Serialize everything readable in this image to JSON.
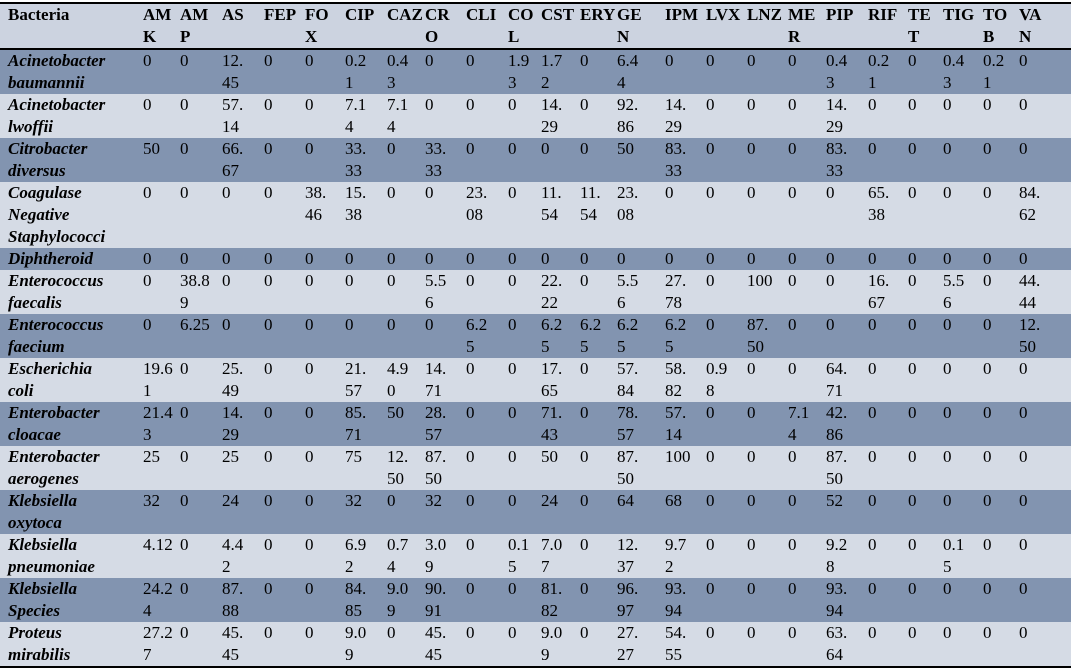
{
  "colors": {
    "header_bg": "#ccd3e0",
    "light_row": "#d5dbe5",
    "dark_row": "#8294b0",
    "border": "#000000"
  },
  "table": {
    "columns": [
      {
        "key": "bacteria",
        "label": "Bacteria",
        "lines": [
          "Bacteria"
        ]
      },
      {
        "key": "AMK",
        "label": "AMK",
        "lines": [
          "AM",
          "K"
        ]
      },
      {
        "key": "AMP",
        "label": "AMP",
        "lines": [
          "AM",
          "P"
        ]
      },
      {
        "key": "AS",
        "label": "AS",
        "lines": [
          "AS"
        ]
      },
      {
        "key": "FEP",
        "label": "FEP",
        "lines": [
          "FEP"
        ]
      },
      {
        "key": "FOX",
        "label": "FOX",
        "lines": [
          "FO",
          "X"
        ]
      },
      {
        "key": "CIP",
        "label": "CIP",
        "lines": [
          "CIP"
        ]
      },
      {
        "key": "CAZ",
        "label": "CAZ",
        "lines": [
          "CAZ"
        ]
      },
      {
        "key": "CRO",
        "label": "CRO",
        "lines": [
          "CR",
          "O"
        ]
      },
      {
        "key": "CLI",
        "label": "CLI",
        "lines": [
          "CLI"
        ]
      },
      {
        "key": "COL",
        "label": "COL",
        "lines": [
          "CO",
          "L"
        ]
      },
      {
        "key": "CST",
        "label": "CST",
        "lines": [
          "CST"
        ]
      },
      {
        "key": "ERY",
        "label": "ERY",
        "lines": [
          "ERY"
        ]
      },
      {
        "key": "GEN",
        "label": "GEN",
        "lines": [
          "GE",
          "N"
        ]
      },
      {
        "key": "IPM",
        "label": "IPM",
        "lines": [
          "IPM"
        ]
      },
      {
        "key": "LVX",
        "label": "LVX",
        "lines": [
          "LVX"
        ]
      },
      {
        "key": "LNZ",
        "label": "LNZ",
        "lines": [
          "LNZ"
        ]
      },
      {
        "key": "MER",
        "label": "MER",
        "lines": [
          "ME",
          "R"
        ]
      },
      {
        "key": "PIP",
        "label": "PIP",
        "lines": [
          "PIP"
        ]
      },
      {
        "key": "RIF",
        "label": "RIF",
        "lines": [
          "RIF"
        ]
      },
      {
        "key": "TET",
        "label": "TET",
        "lines": [
          "TE",
          "T"
        ]
      },
      {
        "key": "TIG",
        "label": "TIG",
        "lines": [
          "TIG"
        ]
      },
      {
        "key": "TOB",
        "label": "TOB",
        "lines": [
          "TO",
          "B"
        ]
      },
      {
        "key": "VAN",
        "label": "VAN",
        "lines": [
          "VA",
          "N"
        ]
      }
    ],
    "rows": [
      {
        "bacteria": "Acinetobacter baumannii",
        "values": [
          "0",
          "0",
          "12.45",
          "0",
          "0",
          "0.21",
          "0.43",
          "0",
          "0",
          "1.93",
          "1.72",
          "0",
          "6.44",
          "0",
          "0",
          "0",
          "0",
          "0.43",
          "0.21",
          "0",
          "0.43",
          "0.21",
          "0"
        ]
      },
      {
        "bacteria": "Acinetobacter lwoffii",
        "values": [
          "0",
          "0",
          "57.14",
          "0",
          "0",
          "7.14",
          "7.14",
          "0",
          "0",
          "0",
          "14.29",
          "0",
          "92.86",
          "14.29",
          "0",
          "0",
          "0",
          "14.29",
          "0",
          "0",
          "0",
          "0",
          "0"
        ]
      },
      {
        "bacteria": "Citrobacter diversus",
        "values": [
          "50",
          "0",
          "66.67",
          "0",
          "0",
          "33.33",
          "0",
          "33.33",
          "0",
          "0",
          "0",
          "0",
          "50",
          "83.33",
          "0",
          "0",
          "0",
          "83.33",
          "0",
          "0",
          "0",
          "0",
          "0"
        ]
      },
      {
        "bacteria": "Coagulase Negative Staphylococci",
        "values": [
          "0",
          "0",
          "0",
          "0",
          "38.46",
          "15.38",
          "0",
          "0",
          "23.08",
          "0",
          "11.54",
          "11.54",
          "23.08",
          "0",
          "0",
          "0",
          "0",
          "0",
          "65.38",
          "0",
          "0",
          "0",
          "84.62"
        ]
      },
      {
        "bacteria": "Diphtheroid",
        "values": [
          "0",
          "0",
          "0",
          "0",
          "0",
          "0",
          "0",
          "0",
          "0",
          "0",
          "0",
          "0",
          "0",
          "0",
          "0",
          "0",
          "0",
          "0",
          "0",
          "0",
          "0",
          "0",
          "0"
        ]
      },
      {
        "bacteria": "Enterococcus faecalis",
        "values": [
          "0",
          "38.89",
          "0",
          "0",
          "0",
          "0",
          "0",
          "5.56",
          "0",
          "0",
          "22.22",
          "0",
          "5.56",
          "27.78",
          "0",
          "100",
          "0",
          "0",
          "16.67",
          "0",
          "5.56",
          "0",
          "44.44"
        ]
      },
      {
        "bacteria": "Enterococcus faecium",
        "values": [
          "0",
          "6.25",
          "0",
          "0",
          "0",
          "0",
          "0",
          "0",
          "6.25",
          "0",
          "6.25",
          "6.25",
          "6.25",
          "6.25",
          "0",
          "87.50",
          "0",
          "0",
          "0",
          "0",
          "0",
          "0",
          "12.50"
        ]
      },
      {
        "bacteria": "Escherichia coli",
        "values": [
          "19.61",
          "0",
          "25.49",
          "0",
          "0",
          "21.57",
          "4.90",
          "14.71",
          "0",
          "0",
          "17.65",
          "0",
          "57.84",
          "58.82",
          "0.98",
          "0",
          "0",
          "64.71",
          "0",
          "0",
          "0",
          "0",
          "0"
        ]
      },
      {
        "bacteria": "Enterobacter cloacae",
        "values": [
          "21.43",
          "0",
          "14.29",
          "0",
          "0",
          "85.71",
          "50",
          "28.57",
          "0",
          "0",
          "71.43",
          "0",
          "78.57",
          "57.14",
          "0",
          "0",
          "7.14",
          "42.86",
          "0",
          "0",
          "0",
          "0",
          "0"
        ]
      },
      {
        "bacteria": "Enterobacter aerogenes",
        "values": [
          "25",
          "0",
          "25",
          "0",
          "0",
          "75",
          "12.50",
          "87.50",
          "0",
          "0",
          "50",
          "0",
          "87.50",
          "100",
          "0",
          "0",
          "0",
          "87.50",
          "0",
          "0",
          "0",
          "0",
          "0"
        ]
      },
      {
        "bacteria": "Klebsiella oxytoca",
        "values": [
          "32",
          "0",
          "24",
          "0",
          "0",
          "32",
          "0",
          "32",
          "0",
          "0",
          "24",
          "0",
          "64",
          "68",
          "0",
          "0",
          "0",
          "52",
          "0",
          "0",
          "0",
          "0",
          "0"
        ]
      },
      {
        "bacteria": "Klebsiella pneumoniae",
        "values": [
          "4.12",
          "0",
          "4.42",
          "0",
          "0",
          "6.92",
          "0.74",
          "3.09",
          "0",
          "0.15",
          "7.07",
          "0",
          "12.37",
          "9.72",
          "0",
          "0",
          "0",
          "9.28",
          "0",
          "0",
          "0.15",
          "0",
          "0"
        ]
      },
      {
        "bacteria": "Klebsiella Species",
        "values": [
          "24.24",
          "0",
          "87.88",
          "0",
          "0",
          "84.85",
          "9.09",
          "90.91",
          "0",
          "0",
          "81.82",
          "0",
          "96.97",
          "93.94",
          "0",
          "0",
          "0",
          "93.94",
          "0",
          "0",
          "0",
          "0",
          "0"
        ]
      },
      {
        "bacteria": "Proteus mirabilis",
        "values": [
          "27.27",
          "0",
          "45.45",
          "0",
          "0",
          "9.09",
          "0",
          "45.45",
          "0",
          "0",
          "9.09",
          "0",
          "27.27",
          "54.55",
          "0",
          "0",
          "0",
          "63.64",
          "0",
          "0",
          "0",
          "0",
          "0"
        ]
      }
    ]
  }
}
